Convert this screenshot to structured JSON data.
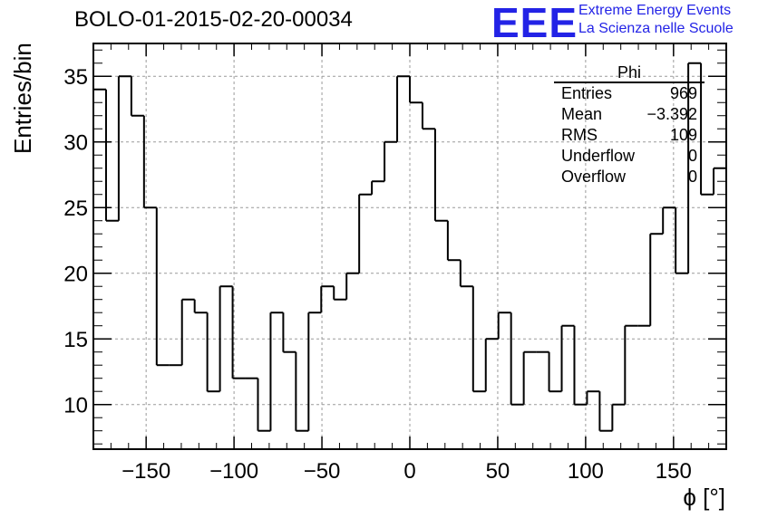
{
  "title": "BOLO-01-2015-02-20-00034",
  "logo": {
    "text": "EEE",
    "line1": "Extreme Energy Events",
    "line2": "La Scienza nelle Scuole",
    "color": "#2323e6"
  },
  "stats": {
    "name": "Phi",
    "rows": [
      {
        "key": "Entries",
        "value": "969"
      },
      {
        "key": "Mean",
        "value": "−3.392"
      },
      {
        "key": "RMS",
        "value": "109"
      },
      {
        "key": "Underflow",
        "value": "0"
      },
      {
        "key": "Overflow",
        "value": "0"
      }
    ]
  },
  "chart_data": {
    "type": "bar",
    "style": "step-histogram",
    "title": "BOLO-01-2015-02-20-00034",
    "xlabel": "ϕ [°]",
    "ylabel": "Entries/bin",
    "xlim": [
      -180,
      180
    ],
    "ylim": [
      6.6,
      37.5
    ],
    "xticks": [
      -150,
      -100,
      -50,
      0,
      50,
      100,
      150
    ],
    "xtick_labels": [
      "−150",
      "−100",
      "−50",
      "0",
      "50",
      "100",
      "150"
    ],
    "yticks": [
      10,
      15,
      20,
      25,
      30,
      35
    ],
    "grid": true,
    "legend": "top-right",
    "bin_edges_start": -180,
    "bin_width": 7.2,
    "values": [
      34,
      24,
      35,
      32,
      25,
      13,
      13,
      18,
      17,
      11,
      19,
      12,
      12,
      8,
      17,
      14,
      8,
      17,
      19,
      18,
      20,
      26,
      27,
      30,
      35,
      33,
      31,
      24,
      21,
      19,
      11,
      15,
      17,
      10,
      14,
      14,
      11,
      16,
      10,
      11,
      8,
      10,
      16,
      16,
      23,
      25,
      20,
      36,
      26,
      28
    ]
  }
}
